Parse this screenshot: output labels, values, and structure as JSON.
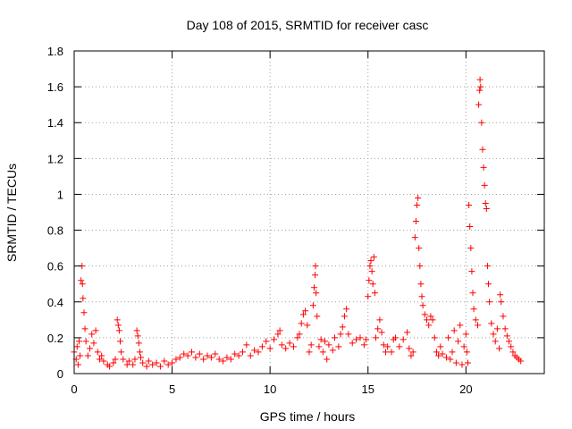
{
  "chart_data": {
    "type": "scatter",
    "title": "Day 108 of 2015, SRMTID for receiver casc",
    "xlabel": "GPS time / hours",
    "ylabel": "SRMTID / TECUs",
    "xlim": [
      0,
      24
    ],
    "ylim": [
      0,
      1.8
    ],
    "x_ticks": [
      0,
      5,
      10,
      15,
      20
    ],
    "x_tick_labels": [
      "0",
      "5",
      "10",
      "15",
      "20"
    ],
    "y_ticks": [
      0,
      0.2,
      0.4,
      0.6,
      0.8,
      1.0,
      1.2,
      1.4,
      1.6,
      1.8
    ],
    "y_tick_labels": [
      "0",
      "0.2",
      "0.4",
      "0.6",
      "0.8",
      "1",
      "1.2",
      "1.4",
      "1.6",
      "1.8"
    ],
    "grid": true,
    "marker": "+",
    "series": [
      {
        "name": "SRMTID",
        "color": "#ff0000",
        "points": [
          [
            0.0,
            0.12
          ],
          [
            0.1,
            0.08
          ],
          [
            0.15,
            0.15
          ],
          [
            0.2,
            0.05
          ],
          [
            0.25,
            0.18
          ],
          [
            0.3,
            0.1
          ],
          [
            0.35,
            0.52
          ],
          [
            0.4,
            0.6
          ],
          [
            0.42,
            0.5
          ],
          [
            0.45,
            0.42
          ],
          [
            0.5,
            0.34
          ],
          [
            0.55,
            0.25
          ],
          [
            0.6,
            0.18
          ],
          [
            0.7,
            0.1
          ],
          [
            0.8,
            0.14
          ],
          [
            0.9,
            0.22
          ],
          [
            1.0,
            0.17
          ],
          [
            1.1,
            0.24
          ],
          [
            1.2,
            0.12
          ],
          [
            1.3,
            0.08
          ],
          [
            1.4,
            0.1
          ],
          [
            1.5,
            0.07
          ],
          [
            1.7,
            0.05
          ],
          [
            1.8,
            0.04
          ],
          [
            2.0,
            0.06
          ],
          [
            2.1,
            0.08
          ],
          [
            2.2,
            0.3
          ],
          [
            2.25,
            0.27
          ],
          [
            2.3,
            0.24
          ],
          [
            2.35,
            0.18
          ],
          [
            2.4,
            0.12
          ],
          [
            2.5,
            0.08
          ],
          [
            2.7,
            0.05
          ],
          [
            2.8,
            0.07
          ],
          [
            3.0,
            0.05
          ],
          [
            3.1,
            0.08
          ],
          [
            3.2,
            0.24
          ],
          [
            3.25,
            0.21
          ],
          [
            3.3,
            0.17
          ],
          [
            3.35,
            0.12
          ],
          [
            3.4,
            0.09
          ],
          [
            3.5,
            0.06
          ],
          [
            3.7,
            0.04
          ],
          [
            3.8,
            0.07
          ],
          [
            4.0,
            0.05
          ],
          [
            4.2,
            0.06
          ],
          [
            4.4,
            0.04
          ],
          [
            4.6,
            0.07
          ],
          [
            4.8,
            0.05
          ],
          [
            5.0,
            0.06
          ],
          [
            5.2,
            0.08
          ],
          [
            5.4,
            0.09
          ],
          [
            5.6,
            0.11
          ],
          [
            5.8,
            0.1
          ],
          [
            6.0,
            0.12
          ],
          [
            6.2,
            0.09
          ],
          [
            6.4,
            0.11
          ],
          [
            6.6,
            0.08
          ],
          [
            6.8,
            0.1
          ],
          [
            7.0,
            0.09
          ],
          [
            7.2,
            0.11
          ],
          [
            7.4,
            0.08
          ],
          [
            7.6,
            0.07
          ],
          [
            7.8,
            0.09
          ],
          [
            8.0,
            0.08
          ],
          [
            8.2,
            0.11
          ],
          [
            8.4,
            0.1
          ],
          [
            8.6,
            0.12
          ],
          [
            8.8,
            0.16
          ],
          [
            9.0,
            0.1
          ],
          [
            9.2,
            0.13
          ],
          [
            9.4,
            0.12
          ],
          [
            9.6,
            0.15
          ],
          [
            9.8,
            0.18
          ],
          [
            10.0,
            0.14
          ],
          [
            10.2,
            0.19
          ],
          [
            10.4,
            0.22
          ],
          [
            10.5,
            0.24
          ],
          [
            10.6,
            0.16
          ],
          [
            10.8,
            0.14
          ],
          [
            11.0,
            0.17
          ],
          [
            11.2,
            0.15
          ],
          [
            11.4,
            0.2
          ],
          [
            11.5,
            0.22
          ],
          [
            11.6,
            0.28
          ],
          [
            11.7,
            0.33
          ],
          [
            11.8,
            0.35
          ],
          [
            11.9,
            0.27
          ],
          [
            12.0,
            0.12
          ],
          [
            12.1,
            0.16
          ],
          [
            12.2,
            0.38
          ],
          [
            12.25,
            0.48
          ],
          [
            12.3,
            0.55
          ],
          [
            12.32,
            0.6
          ],
          [
            12.35,
            0.45
          ],
          [
            12.4,
            0.32
          ],
          [
            12.5,
            0.15
          ],
          [
            12.6,
            0.19
          ],
          [
            12.7,
            0.12
          ],
          [
            12.8,
            0.18
          ],
          [
            12.9,
            0.08
          ],
          [
            13.0,
            0.16
          ],
          [
            13.2,
            0.13
          ],
          [
            13.3,
            0.2
          ],
          [
            13.5,
            0.15
          ],
          [
            13.6,
            0.22
          ],
          [
            13.7,
            0.26
          ],
          [
            13.8,
            0.32
          ],
          [
            13.9,
            0.36
          ],
          [
            14.0,
            0.22
          ],
          [
            14.2,
            0.17
          ],
          [
            14.4,
            0.19
          ],
          [
            14.6,
            0.2
          ],
          [
            14.8,
            0.16
          ],
          [
            14.9,
            0.19
          ],
          [
            15.0,
            0.43
          ],
          [
            15.05,
            0.52
          ],
          [
            15.1,
            0.6
          ],
          [
            15.15,
            0.63
          ],
          [
            15.2,
            0.57
          ],
          [
            15.25,
            0.5
          ],
          [
            15.3,
            0.65
          ],
          [
            15.35,
            0.45
          ],
          [
            15.4,
            0.2
          ],
          [
            15.5,
            0.25
          ],
          [
            15.6,
            0.3
          ],
          [
            15.7,
            0.23
          ],
          [
            15.8,
            0.16
          ],
          [
            15.9,
            0.12
          ],
          [
            16.0,
            0.15
          ],
          [
            16.2,
            0.12
          ],
          [
            16.3,
            0.19
          ],
          [
            16.4,
            0.2
          ],
          [
            16.6,
            0.15
          ],
          [
            16.8,
            0.19
          ],
          [
            17.0,
            0.23
          ],
          [
            17.1,
            0.14
          ],
          [
            17.2,
            0.1
          ],
          [
            17.3,
            0.12
          ],
          [
            17.4,
            0.76
          ],
          [
            17.45,
            0.85
          ],
          [
            17.5,
            0.94
          ],
          [
            17.55,
            0.98
          ],
          [
            17.6,
            0.7
          ],
          [
            17.65,
            0.6
          ],
          [
            17.7,
            0.5
          ],
          [
            17.75,
            0.43
          ],
          [
            17.8,
            0.38
          ],
          [
            17.9,
            0.33
          ],
          [
            18.0,
            0.3
          ],
          [
            18.1,
            0.27
          ],
          [
            18.2,
            0.32
          ],
          [
            18.3,
            0.3
          ],
          [
            18.4,
            0.2
          ],
          [
            18.5,
            0.12
          ],
          [
            18.6,
            0.1
          ],
          [
            18.7,
            0.15
          ],
          [
            18.8,
            0.11
          ],
          [
            19.0,
            0.09
          ],
          [
            19.1,
            0.2
          ],
          [
            19.2,
            0.08
          ],
          [
            19.3,
            0.12
          ],
          [
            19.4,
            0.24
          ],
          [
            19.5,
            0.06
          ],
          [
            19.6,
            0.18
          ],
          [
            19.7,
            0.27
          ],
          [
            19.8,
            0.05
          ],
          [
            19.9,
            0.15
          ],
          [
            20.0,
            0.22
          ],
          [
            20.05,
            0.12
          ],
          [
            20.1,
            0.06
          ],
          [
            20.15,
            0.94
          ],
          [
            20.2,
            0.82
          ],
          [
            20.25,
            0.7
          ],
          [
            20.3,
            0.57
          ],
          [
            20.35,
            0.45
          ],
          [
            20.4,
            0.36
          ],
          [
            20.5,
            0.3
          ],
          [
            20.6,
            0.27
          ],
          [
            20.65,
            1.5
          ],
          [
            20.7,
            1.58
          ],
          [
            20.72,
            1.64
          ],
          [
            20.75,
            1.6
          ],
          [
            20.8,
            1.4
          ],
          [
            20.85,
            1.25
          ],
          [
            20.9,
            1.15
          ],
          [
            20.95,
            1.05
          ],
          [
            21.0,
            0.95
          ],
          [
            21.05,
            0.92
          ],
          [
            21.1,
            0.6
          ],
          [
            21.15,
            0.5
          ],
          [
            21.2,
            0.4
          ],
          [
            21.3,
            0.28
          ],
          [
            21.4,
            0.22
          ],
          [
            21.5,
            0.18
          ],
          [
            21.6,
            0.25
          ],
          [
            21.7,
            0.14
          ],
          [
            21.75,
            0.44
          ],
          [
            21.8,
            0.4
          ],
          [
            21.9,
            0.32
          ],
          [
            22.0,
            0.25
          ],
          [
            22.1,
            0.21
          ],
          [
            22.2,
            0.18
          ],
          [
            22.3,
            0.15
          ],
          [
            22.4,
            0.12
          ],
          [
            22.5,
            0.1
          ],
          [
            22.6,
            0.09
          ],
          [
            22.7,
            0.08
          ],
          [
            22.8,
            0.07
          ]
        ]
      }
    ]
  }
}
